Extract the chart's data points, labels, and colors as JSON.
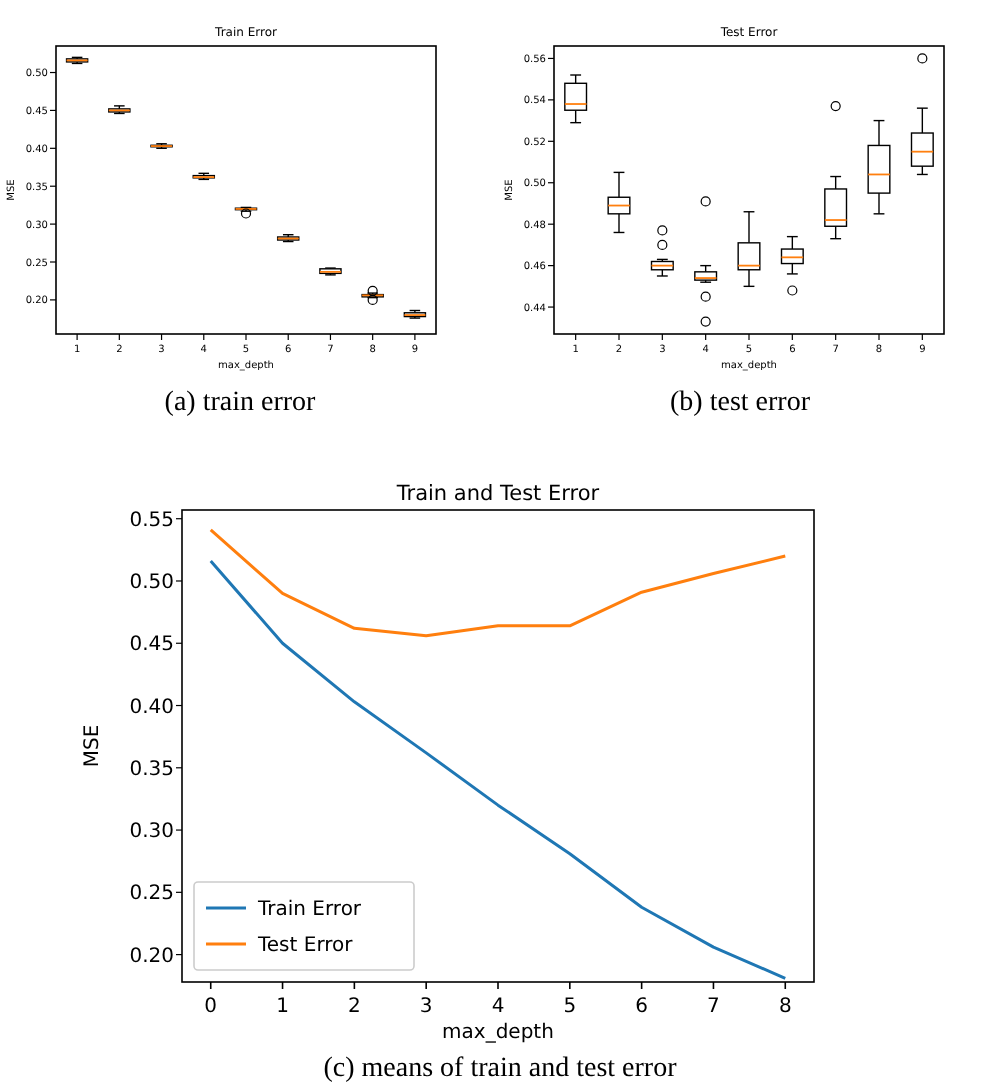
{
  "chart_data": [
    {
      "type": "box",
      "title": "Train Error",
      "xlabel": "max_depth",
      "ylabel": "MSE",
      "categories": [
        "1",
        "2",
        "3",
        "4",
        "5",
        "6",
        "7",
        "8",
        "9"
      ],
      "ylim": [
        0.155,
        0.535
      ],
      "yticks": [
        {
          "value": 0.2,
          "label": "0.20"
        },
        {
          "value": 0.25,
          "label": "0.25"
        },
        {
          "value": 0.3,
          "label": "0.30"
        },
        {
          "value": 0.35,
          "label": "0.35"
        },
        {
          "value": 0.4,
          "label": "0.40"
        },
        {
          "value": 0.45,
          "label": "0.45"
        },
        {
          "value": 0.5,
          "label": "0.50"
        }
      ],
      "annotations": [
        "(a) train error"
      ],
      "boxes": [
        {
          "low": 0.512,
          "q1": 0.514,
          "median": 0.516,
          "q3": 0.518,
          "high": 0.52
        },
        {
          "low": 0.446,
          "q1": 0.448,
          "median": 0.45,
          "q3": 0.452,
          "high": 0.456
        },
        {
          "low": 0.4,
          "q1": 0.402,
          "median": 0.403,
          "q3": 0.404,
          "high": 0.406
        },
        {
          "low": 0.359,
          "q1": 0.361,
          "median": 0.362,
          "q3": 0.364,
          "high": 0.367
        },
        {
          "low": 0.317,
          "q1": 0.319,
          "median": 0.32,
          "q3": 0.321,
          "high": 0.322,
          "outliers": [
            0.314
          ]
        },
        {
          "low": 0.277,
          "q1": 0.279,
          "median": 0.281,
          "q3": 0.283,
          "high": 0.286
        },
        {
          "low": 0.233,
          "q1": 0.235,
          "median": 0.237,
          "q3": 0.241,
          "high": 0.242
        },
        {
          "low": 0.203,
          "q1": 0.204,
          "median": 0.206,
          "q3": 0.207,
          "high": 0.209,
          "outliers": [
            0.2,
            0.212
          ]
        },
        {
          "low": 0.176,
          "q1": 0.178,
          "median": 0.18,
          "q3": 0.183,
          "high": 0.186
        }
      ]
    },
    {
      "type": "box",
      "title": "Test Error",
      "xlabel": "max_depth",
      "ylabel": "MSE",
      "categories": [
        "1",
        "2",
        "3",
        "4",
        "5",
        "6",
        "7",
        "8",
        "9"
      ],
      "ylim": [
        0.427,
        0.566
      ],
      "yticks": [
        {
          "value": 0.44,
          "label": "0.44"
        },
        {
          "value": 0.46,
          "label": "0.46"
        },
        {
          "value": 0.48,
          "label": "0.48"
        },
        {
          "value": 0.5,
          "label": "0.50"
        },
        {
          "value": 0.52,
          "label": "0.52"
        },
        {
          "value": 0.54,
          "label": "0.54"
        },
        {
          "value": 0.56,
          "label": "0.56"
        }
      ],
      "annotations": [
        "(b) test error"
      ],
      "boxes": [
        {
          "low": 0.529,
          "q1": 0.535,
          "median": 0.538,
          "q3": 0.548,
          "high": 0.552
        },
        {
          "low": 0.476,
          "q1": 0.485,
          "median": 0.489,
          "q3": 0.493,
          "high": 0.505
        },
        {
          "low": 0.455,
          "q1": 0.458,
          "median": 0.46,
          "q3": 0.462,
          "high": 0.463,
          "outliers": [
            0.47,
            0.477
          ]
        },
        {
          "low": 0.452,
          "q1": 0.453,
          "median": 0.454,
          "q3": 0.457,
          "high": 0.46,
          "outliers": [
            0.491,
            0.445,
            0.433
          ]
        },
        {
          "low": 0.45,
          "q1": 0.458,
          "median": 0.46,
          "q3": 0.471,
          "high": 0.486
        },
        {
          "low": 0.456,
          "q1": 0.461,
          "median": 0.464,
          "q3": 0.468,
          "high": 0.474,
          "outliers": [
            0.448
          ]
        },
        {
          "low": 0.473,
          "q1": 0.479,
          "median": 0.482,
          "q3": 0.497,
          "high": 0.503,
          "outliers": [
            0.537
          ]
        },
        {
          "low": 0.485,
          "q1": 0.495,
          "median": 0.504,
          "q3": 0.518,
          "high": 0.53
        },
        {
          "low": 0.504,
          "q1": 0.508,
          "median": 0.515,
          "q3": 0.524,
          "high": 0.536,
          "outliers": [
            0.56
          ]
        }
      ]
    },
    {
      "type": "line",
      "title": "Train and Test Error",
      "xlabel": "max_depth",
      "ylabel": "MSE",
      "x": [
        0,
        1,
        2,
        3,
        4,
        5,
        6,
        7,
        8
      ],
      "xlim": [
        -0.4,
        8.4
      ],
      "xticks": [
        0,
        1,
        2,
        3,
        4,
        5,
        6,
        7,
        8
      ],
      "ylim": [
        0.178,
        0.557
      ],
      "yticks": [
        {
          "value": 0.2,
          "label": "0.20"
        },
        {
          "value": 0.25,
          "label": "0.25"
        },
        {
          "value": 0.3,
          "label": "0.30"
        },
        {
          "value": 0.35,
          "label": "0.35"
        },
        {
          "value": 0.4,
          "label": "0.40"
        },
        {
          "value": 0.45,
          "label": "0.45"
        },
        {
          "value": 0.5,
          "label": "0.50"
        },
        {
          "value": 0.55,
          "label": "0.55"
        }
      ],
      "legend": "bottom left",
      "annotations": [
        "(c) means of train and test error"
      ],
      "series": [
        {
          "name": "Train Error",
          "color": "#1f77b4",
          "values": [
            0.516,
            0.45,
            0.403,
            0.362,
            0.32,
            0.281,
            0.238,
            0.206,
            0.181
          ]
        },
        {
          "name": "Test Error",
          "color": "#ff7f0e",
          "values": [
            0.541,
            0.49,
            0.462,
            0.456,
            0.464,
            0.464,
            0.491,
            0.506,
            0.52
          ]
        }
      ]
    }
  ]
}
